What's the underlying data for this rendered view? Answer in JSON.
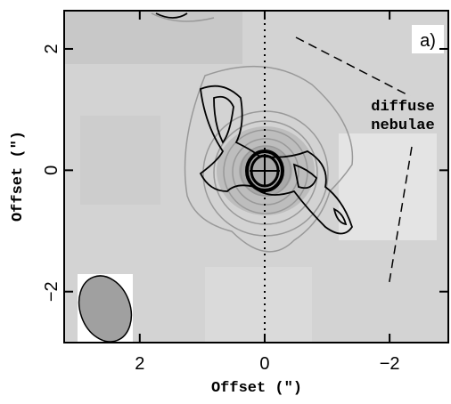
{
  "chart_data": {
    "type": "contour",
    "xlabel": "Offset (\")",
    "ylabel": "Offset (\")",
    "xlim": [
      3.21,
      -2.94
    ],
    "ylim": [
      -2.84,
      2.63
    ],
    "xticks": [
      2,
      0,
      {
        "value": -2,
        "label": "−2"
      }
    ],
    "yticks": [
      {
        "value": -2,
        "label": "−2"
      },
      0,
      2
    ],
    "panel_label": "a)",
    "annotation": [
      "diffuse",
      "nebulae"
    ]
  }
}
